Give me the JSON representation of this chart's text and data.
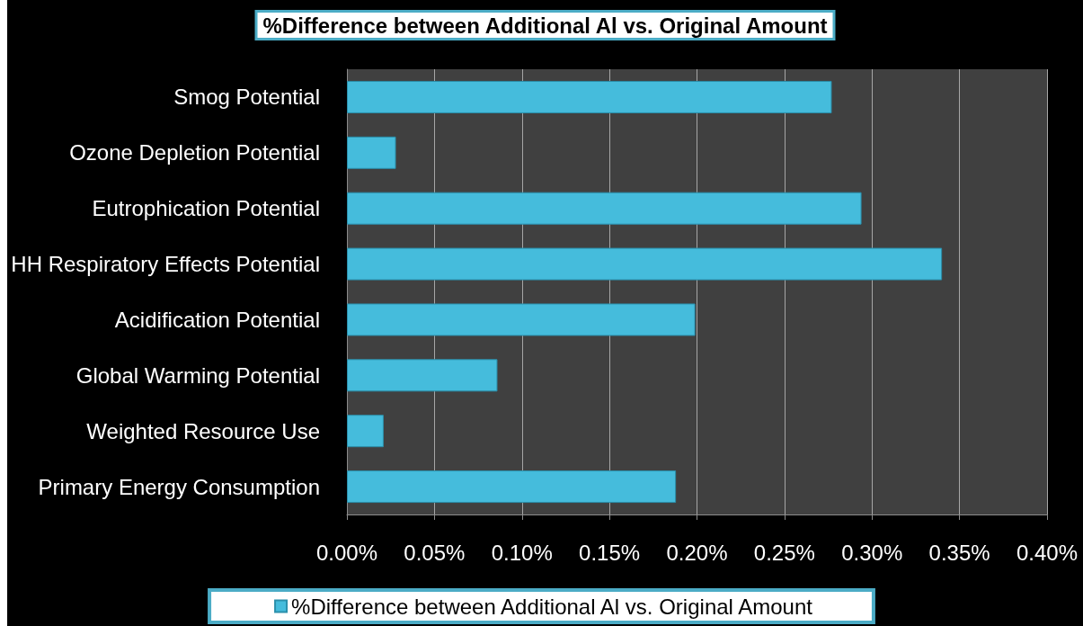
{
  "chart_data": {
    "type": "bar",
    "orientation": "horizontal",
    "title": "%Difference between Additional Al vs. Original Amount",
    "categories": [
      "Smog Potential",
      "Ozone Depletion Potential",
      "Eutrophication Potential",
      "HH Respiratory Effects Potential",
      "Acidification Potential",
      "Global Warming Potential",
      "Weighted Resource Use",
      "Primary Energy Consumption"
    ],
    "series": [
      {
        "name": "%Difference between Additional Al vs. Original Amount",
        "color": "#45bcdc",
        "values": [
          0.277,
          0.028,
          0.294,
          0.34,
          0.199,
          0.086,
          0.021,
          0.188
        ]
      }
    ],
    "xlim": [
      0,
      0.4
    ],
    "xticks": [
      {
        "value": 0,
        "label": "0.00%"
      },
      {
        "value": 0.05,
        "label": "0.05%"
      },
      {
        "value": 0.1,
        "label": "0.10%"
      },
      {
        "value": 0.15,
        "label": "0.15%"
      },
      {
        "value": 0.2,
        "label": "0.20%"
      },
      {
        "value": 0.25,
        "label": "0.25%"
      },
      {
        "value": 0.3,
        "label": "0.30%"
      },
      {
        "value": 0.35,
        "label": "0.35%"
      },
      {
        "value": 0.4,
        "label": "0.40%"
      }
    ],
    "grid": "x",
    "legend": "bottom"
  }
}
